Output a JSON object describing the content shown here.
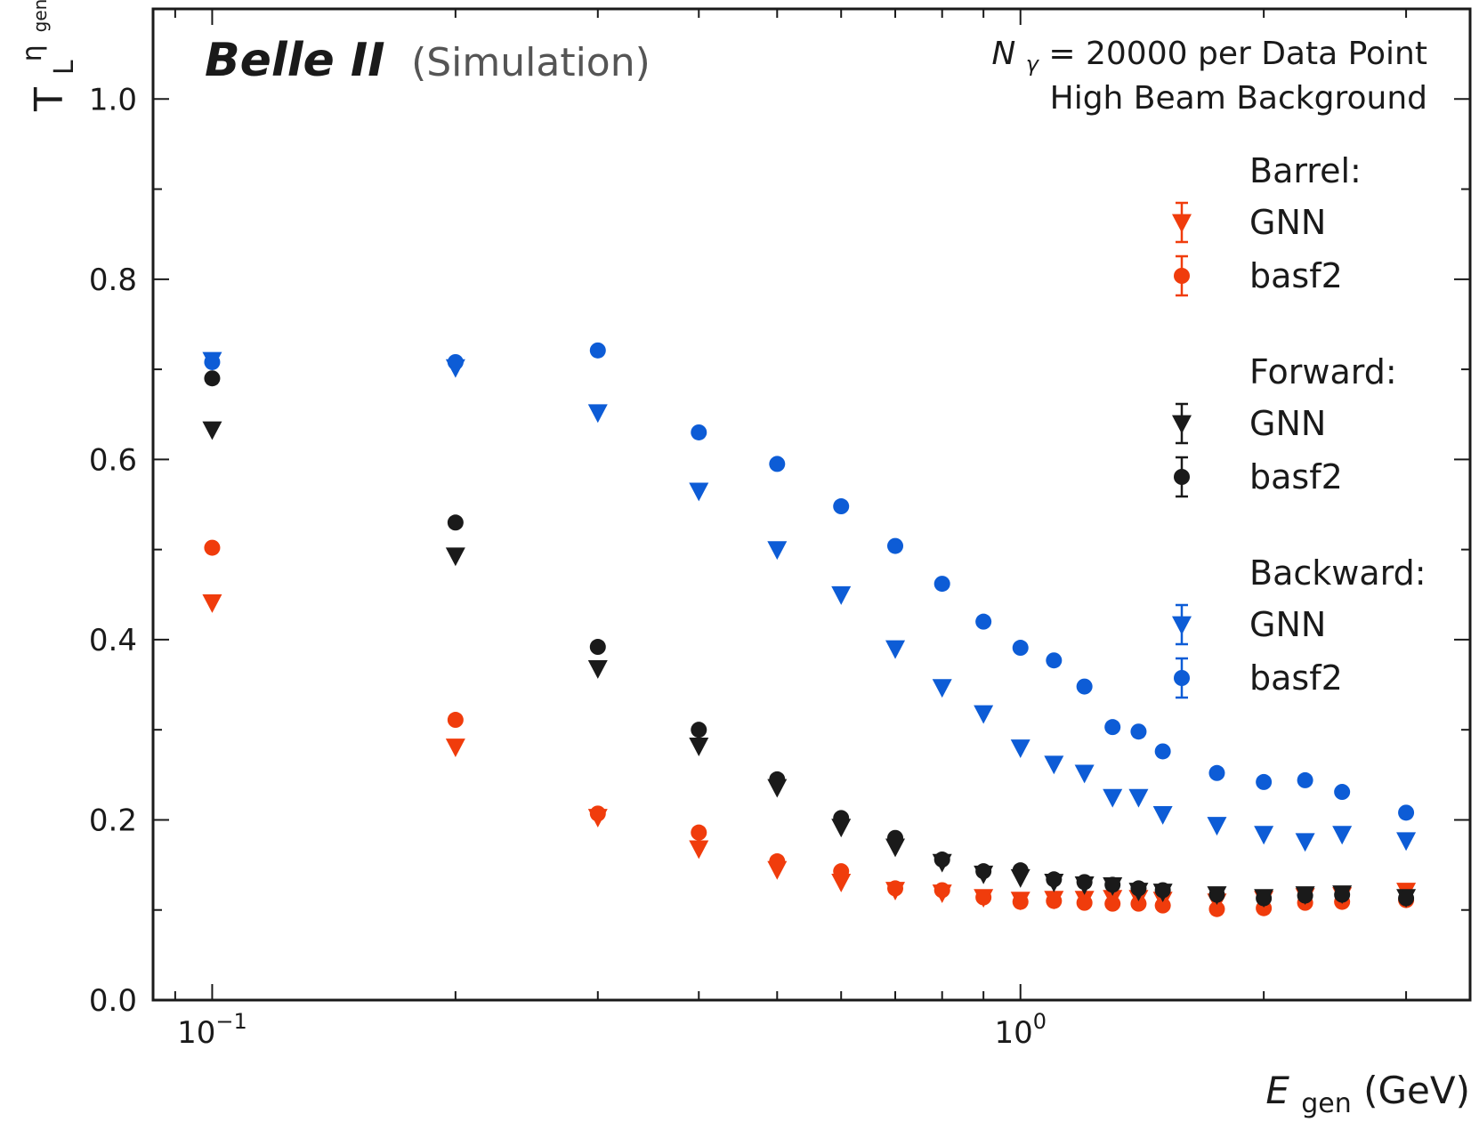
{
  "chart_data": {
    "type": "scatter",
    "title": {
      "experiment": "Belle II",
      "status": "(Simulation)",
      "info_line1_symbol": "N",
      "info_line1_sub": "γ",
      "info_line1_rest": " = 20000 per Data Point",
      "info_line2": "High Beam Background"
    },
    "xlabel": {
      "symbol": "E",
      "sub": "gen",
      "unit": " (GeV)"
    },
    "ylabel": {
      "symbol": "T",
      "sub": "L",
      "sup": "η",
      "supsub": "gen"
    },
    "xscale": "log",
    "xlim": [
      0.0845,
      3.6
    ],
    "ylim": [
      0.0,
      1.1
    ],
    "x_major_ticks": [
      {
        "value": 0.1,
        "base": "10",
        "exp": "−1"
      },
      {
        "value": 1.0,
        "base": "10",
        "exp": "0"
      }
    ],
    "y_ticks": [
      0.0,
      0.2,
      0.4,
      0.6,
      0.8,
      1.0
    ],
    "y_tick_labels": [
      "0.0",
      "0.2",
      "0.4",
      "0.6",
      "0.8",
      "1.0"
    ],
    "x": [
      0.1,
      0.2,
      0.3,
      0.4,
      0.5,
      0.6,
      0.7,
      0.8,
      0.9,
      1.0,
      1.1,
      1.2,
      1.3,
      1.4,
      1.5,
      1.75,
      2.0,
      2.25,
      2.5,
      3.0
    ],
    "legend_position": "right",
    "legend_groups": [
      {
        "title": "Barrel:",
        "entries": [
          {
            "label": "GNN",
            "series": 0
          },
          {
            "label": "basf2",
            "series": 1
          }
        ]
      },
      {
        "title": "Forward:",
        "entries": [
          {
            "label": "GNN",
            "series": 2
          },
          {
            "label": "basf2",
            "series": 3
          }
        ]
      },
      {
        "title": "Backward:",
        "entries": [
          {
            "label": "GNN",
            "series": 4
          },
          {
            "label": "basf2",
            "series": 5
          }
        ]
      }
    ],
    "series": [
      {
        "name": "Barrel GNN",
        "region": "Barrel",
        "method": "GNN",
        "marker": "triangle-down",
        "color": "#f03c0c",
        "values": [
          0.441,
          0.281,
          0.203,
          0.168,
          0.145,
          0.131,
          0.122,
          0.119,
          0.114,
          0.111,
          0.112,
          0.112,
          0.113,
          0.113,
          0.111,
          0.109,
          0.112,
          0.115,
          0.116,
          0.121
        ]
      },
      {
        "name": "Barrel basf2",
        "region": "Barrel",
        "method": "basf2",
        "marker": "circle",
        "color": "#f03c0c",
        "values": [
          0.502,
          0.311,
          0.207,
          0.186,
          0.154,
          0.143,
          0.124,
          0.122,
          0.114,
          0.109,
          0.11,
          0.108,
          0.107,
          0.107,
          0.105,
          0.101,
          0.102,
          0.108,
          0.109,
          0.111
        ]
      },
      {
        "name": "Forward GNN",
        "region": "Forward",
        "method": "GNN",
        "marker": "triangle-down",
        "color": "#1a1a1a",
        "values": [
          0.633,
          0.493,
          0.368,
          0.282,
          0.236,
          0.192,
          0.17,
          0.153,
          0.14,
          0.136,
          0.131,
          0.128,
          0.127,
          0.121,
          0.12,
          0.117,
          0.114,
          0.117,
          0.118,
          0.114
        ]
      },
      {
        "name": "Forward basf2",
        "region": "Forward",
        "method": "basf2",
        "marker": "circle",
        "color": "#1a1a1a",
        "values": [
          0.69,
          0.53,
          0.392,
          0.3,
          0.245,
          0.202,
          0.18,
          0.156,
          0.143,
          0.144,
          0.134,
          0.131,
          0.128,
          0.124,
          0.122,
          0.117,
          0.113,
          0.116,
          0.117,
          0.113
        ]
      },
      {
        "name": "Backward GNN",
        "region": "Backward",
        "method": "GNN",
        "marker": "triangle-down",
        "color": "#0d5cd6",
        "values": [
          0.71,
          0.702,
          0.652,
          0.565,
          0.5,
          0.45,
          0.39,
          0.347,
          0.318,
          0.28,
          0.262,
          0.252,
          0.225,
          0.225,
          0.206,
          0.194,
          0.184,
          0.176,
          0.184,
          0.177
        ]
      },
      {
        "name": "Backward basf2",
        "region": "Backward",
        "method": "basf2",
        "marker": "circle",
        "color": "#0d5cd6",
        "values": [
          0.708,
          0.708,
          0.721,
          0.63,
          0.595,
          0.548,
          0.504,
          0.462,
          0.42,
          0.391,
          0.377,
          0.348,
          0.303,
          0.298,
          0.276,
          0.252,
          0.242,
          0.244,
          0.231,
          0.208
        ]
      }
    ]
  }
}
